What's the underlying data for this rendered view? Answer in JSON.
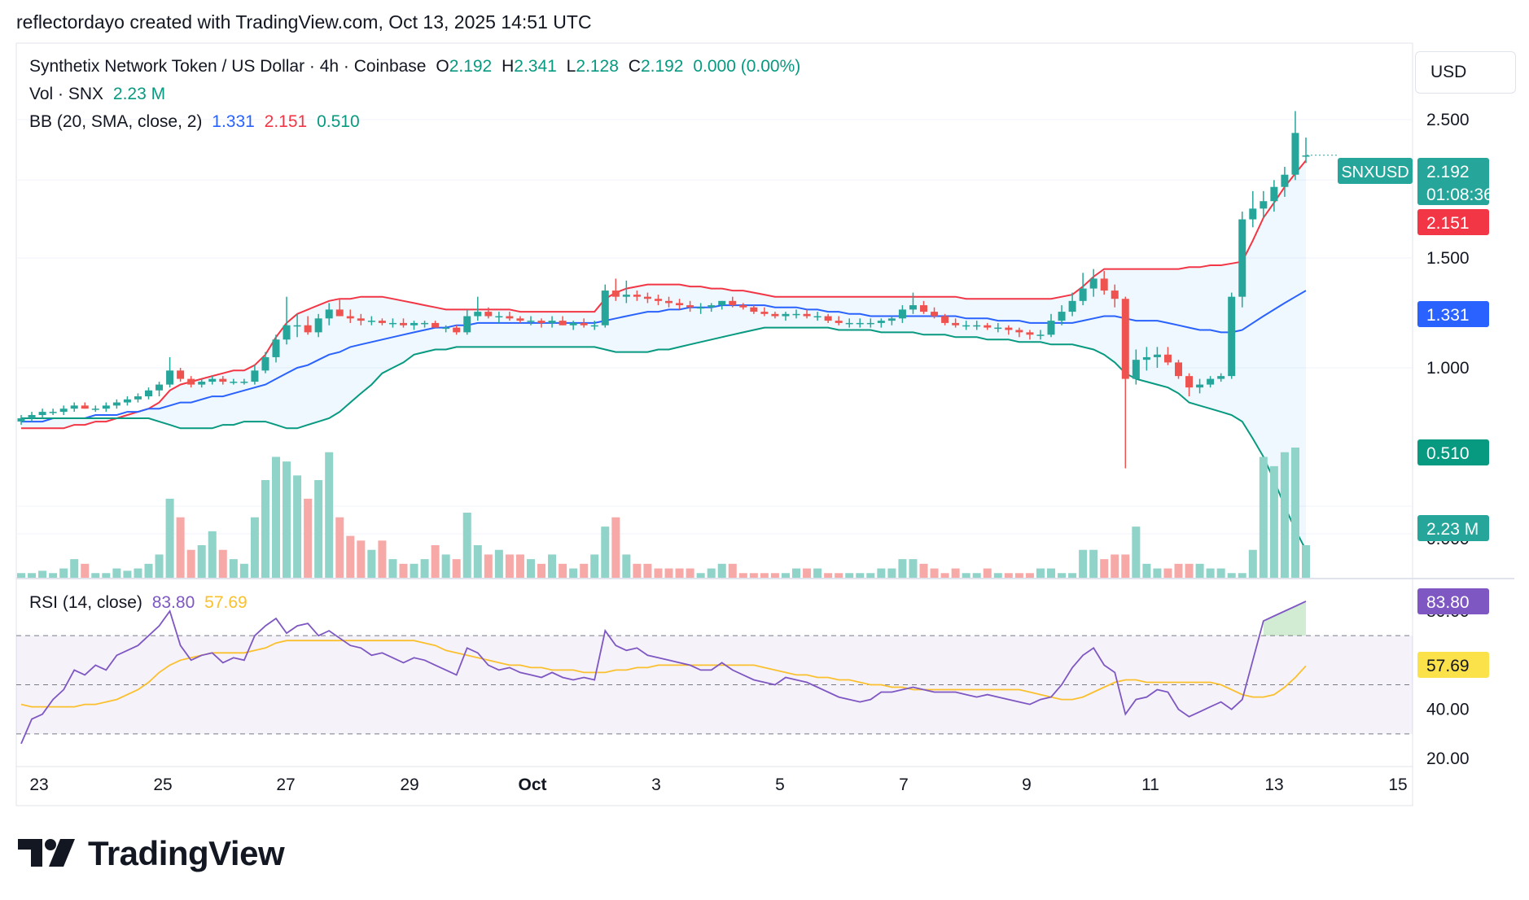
{
  "credit": "reflectordayo created with TradingView.com, Oct 13, 2025 14:51 UTC",
  "legend": {
    "main_title": "Synthetix Network Token / US Dollar · 4h · Coinbase",
    "o_label": "O",
    "o_val": "2.192",
    "h_label": "H",
    "h_val": "2.341",
    "l_label": "L",
    "l_val": "2.128",
    "c_label": "C",
    "c_val": "2.192",
    "change": "0.000 (0.00%)",
    "vol_label": "Vol · SNX",
    "vol_val": "2.23 M",
    "bb_label": "BB (20, SMA, close, 2)",
    "bb_mid": "1.331",
    "bb_upper": "2.151",
    "bb_lower": "0.510",
    "rsi_label": "RSI (14, close)",
    "rsi_val": "83.80",
    "rsi_ma": "57.69"
  },
  "currency": "USD",
  "logo_text": "TradingView",
  "colors": {
    "up": "#26a69a",
    "down": "#ef5350",
    "bb_upper": "#f23645",
    "bb_basis": "#2962ff",
    "bb_lower": "#089981",
    "rsi": "#7e57c2",
    "rsi_ma": "#fbc02d",
    "vol_up": "#8fd3c9",
    "vol_down": "#f7a9a7"
  },
  "chart_data": {
    "type": "candlestick",
    "symbol": "SNXUSD",
    "timeframe": "4h",
    "price_axis": {
      "ticks": [
        "2.500",
        "1.500",
        "1.000"
      ],
      "scale": "log",
      "markers": [
        {
          "label": "SNXUSD",
          "value": "2.192",
          "sub": "01:08:36",
          "color": "#26a69a"
        },
        {
          "label": "",
          "value": "2.151",
          "color": "#f23645"
        },
        {
          "label": "",
          "value": "1.331",
          "color": "#2962ff"
        },
        {
          "label": "",
          "value": "0.510",
          "color": "#089981"
        },
        {
          "label": "",
          "value": "2.23 M",
          "color": "#26a69a"
        }
      ],
      "hidden_tick": "0.000"
    },
    "rsi_axis": {
      "ticks": [
        "80.00",
        "40.00",
        "20.00"
      ],
      "markers": [
        {
          "value": "83.80",
          "color": "#7e57c2",
          "text_color": "#ffffff"
        },
        {
          "value": "57.69",
          "color": "#fbe14a",
          "text_color": "#131722"
        }
      ],
      "bands": [
        70,
        50,
        30
      ]
    },
    "x_ticks": [
      "23",
      "25",
      "27",
      "29",
      "Oct",
      "3",
      "5",
      "7",
      "9",
      "11",
      "13",
      "15"
    ],
    "ohlc": [
      [
        0.82,
        0.84,
        0.81,
        0.83
      ],
      [
        0.83,
        0.85,
        0.82,
        0.84
      ],
      [
        0.84,
        0.86,
        0.83,
        0.85
      ],
      [
        0.85,
        0.86,
        0.84,
        0.85
      ],
      [
        0.85,
        0.87,
        0.84,
        0.86
      ],
      [
        0.86,
        0.88,
        0.85,
        0.87
      ],
      [
        0.87,
        0.88,
        0.86,
        0.86
      ],
      [
        0.86,
        0.87,
        0.85,
        0.86
      ],
      [
        0.86,
        0.88,
        0.85,
        0.87
      ],
      [
        0.87,
        0.89,
        0.86,
        0.88
      ],
      [
        0.88,
        0.9,
        0.87,
        0.89
      ],
      [
        0.89,
        0.91,
        0.88,
        0.9
      ],
      [
        0.9,
        0.93,
        0.89,
        0.92
      ],
      [
        0.92,
        0.95,
        0.9,
        0.94
      ],
      [
        0.94,
        1.04,
        0.93,
        0.99
      ],
      [
        0.99,
        1.0,
        0.95,
        0.96
      ],
      [
        0.96,
        0.97,
        0.93,
        0.94
      ],
      [
        0.94,
        0.96,
        0.93,
        0.95
      ],
      [
        0.95,
        0.97,
        0.94,
        0.96
      ],
      [
        0.96,
        0.97,
        0.94,
        0.95
      ],
      [
        0.95,
        0.96,
        0.94,
        0.95
      ],
      [
        0.95,
        0.96,
        0.94,
        0.95
      ],
      [
        0.95,
        1.01,
        0.94,
        0.99
      ],
      [
        0.99,
        1.06,
        0.98,
        1.04
      ],
      [
        1.04,
        1.13,
        1.02,
        1.11
      ],
      [
        1.11,
        1.3,
        1.09,
        1.17
      ],
      [
        1.17,
        1.22,
        1.12,
        1.17
      ],
      [
        1.17,
        1.21,
        1.13,
        1.14
      ],
      [
        1.14,
        1.22,
        1.12,
        1.2
      ],
      [
        1.2,
        1.27,
        1.17,
        1.24
      ],
      [
        1.24,
        1.29,
        1.21,
        1.21
      ],
      [
        1.21,
        1.24,
        1.18,
        1.2
      ],
      [
        1.2,
        1.22,
        1.17,
        1.19
      ],
      [
        1.19,
        1.21,
        1.17,
        1.19
      ],
      [
        1.19,
        1.2,
        1.17,
        1.18
      ],
      [
        1.18,
        1.2,
        1.16,
        1.18
      ],
      [
        1.18,
        1.2,
        1.16,
        1.17
      ],
      [
        1.17,
        1.19,
        1.15,
        1.18
      ],
      [
        1.18,
        1.19,
        1.16,
        1.18
      ],
      [
        1.18,
        1.19,
        1.16,
        1.16
      ],
      [
        1.16,
        1.17,
        1.14,
        1.16
      ],
      [
        1.16,
        1.17,
        1.13,
        1.14
      ],
      [
        1.14,
        1.24,
        1.13,
        1.21
      ],
      [
        1.21,
        1.3,
        1.19,
        1.23
      ],
      [
        1.23,
        1.25,
        1.2,
        1.21
      ],
      [
        1.21,
        1.23,
        1.18,
        1.21
      ],
      [
        1.21,
        1.23,
        1.19,
        1.2
      ],
      [
        1.2,
        1.21,
        1.18,
        1.19
      ],
      [
        1.19,
        1.21,
        1.17,
        1.19
      ],
      [
        1.19,
        1.2,
        1.16,
        1.18
      ],
      [
        1.18,
        1.21,
        1.16,
        1.19
      ],
      [
        1.19,
        1.21,
        1.17,
        1.17
      ],
      [
        1.17,
        1.19,
        1.15,
        1.18
      ],
      [
        1.18,
        1.2,
        1.16,
        1.17
      ],
      [
        1.17,
        1.19,
        1.15,
        1.17
      ],
      [
        1.17,
        1.36,
        1.16,
        1.33
      ],
      [
        1.33,
        1.39,
        1.28,
        1.3
      ],
      [
        1.3,
        1.38,
        1.27,
        1.31
      ],
      [
        1.31,
        1.33,
        1.28,
        1.3
      ],
      [
        1.3,
        1.32,
        1.27,
        1.29
      ],
      [
        1.29,
        1.31,
        1.26,
        1.28
      ],
      [
        1.28,
        1.3,
        1.25,
        1.27
      ],
      [
        1.27,
        1.29,
        1.24,
        1.26
      ],
      [
        1.26,
        1.28,
        1.23,
        1.25
      ],
      [
        1.25,
        1.27,
        1.22,
        1.25
      ],
      [
        1.25,
        1.27,
        1.23,
        1.26
      ],
      [
        1.26,
        1.28,
        1.24,
        1.28
      ],
      [
        1.28,
        1.3,
        1.25,
        1.26
      ],
      [
        1.26,
        1.27,
        1.24,
        1.25
      ],
      [
        1.25,
        1.26,
        1.22,
        1.23
      ],
      [
        1.23,
        1.25,
        1.21,
        1.22
      ],
      [
        1.22,
        1.23,
        1.2,
        1.21
      ],
      [
        1.21,
        1.23,
        1.19,
        1.22
      ],
      [
        1.22,
        1.24,
        1.2,
        1.22
      ],
      [
        1.22,
        1.24,
        1.2,
        1.21
      ],
      [
        1.21,
        1.23,
        1.19,
        1.21
      ],
      [
        1.21,
        1.22,
        1.18,
        1.19
      ],
      [
        1.19,
        1.21,
        1.17,
        1.18
      ],
      [
        1.18,
        1.2,
        1.16,
        1.18
      ],
      [
        1.18,
        1.2,
        1.16,
        1.18
      ],
      [
        1.18,
        1.2,
        1.16,
        1.18
      ],
      [
        1.18,
        1.2,
        1.16,
        1.19
      ],
      [
        1.19,
        1.21,
        1.17,
        1.2
      ],
      [
        1.2,
        1.26,
        1.18,
        1.24
      ],
      [
        1.24,
        1.32,
        1.22,
        1.26
      ],
      [
        1.26,
        1.28,
        1.22,
        1.23
      ],
      [
        1.23,
        1.25,
        1.2,
        1.21
      ],
      [
        1.21,
        1.22,
        1.17,
        1.18
      ],
      [
        1.18,
        1.2,
        1.16,
        1.17
      ],
      [
        1.17,
        1.19,
        1.15,
        1.17
      ],
      [
        1.17,
        1.19,
        1.15,
        1.17
      ],
      [
        1.17,
        1.18,
        1.15,
        1.16
      ],
      [
        1.16,
        1.18,
        1.14,
        1.16
      ],
      [
        1.16,
        1.17,
        1.13,
        1.15
      ],
      [
        1.15,
        1.16,
        1.12,
        1.14
      ],
      [
        1.14,
        1.15,
        1.11,
        1.13
      ],
      [
        1.13,
        1.15,
        1.11,
        1.13
      ],
      [
        1.13,
        1.22,
        1.12,
        1.19
      ],
      [
        1.19,
        1.26,
        1.17,
        1.23
      ],
      [
        1.23,
        1.32,
        1.21,
        1.28
      ],
      [
        1.28,
        1.42,
        1.26,
        1.34
      ],
      [
        1.34,
        1.44,
        1.3,
        1.39
      ],
      [
        1.39,
        1.43,
        1.31,
        1.33
      ],
      [
        1.33,
        1.36,
        1.25,
        1.29
      ],
      [
        1.29,
        1.3,
        0.69,
        0.96
      ],
      [
        0.96,
        1.07,
        0.94,
        1.03
      ],
      [
        1.03,
        1.08,
        0.99,
        1.04
      ],
      [
        1.04,
        1.08,
        1.0,
        1.05
      ],
      [
        1.05,
        1.08,
        1.01,
        1.02
      ],
      [
        1.02,
        1.03,
        0.96,
        0.97
      ],
      [
        0.97,
        0.98,
        0.9,
        0.93
      ],
      [
        0.93,
        0.96,
        0.91,
        0.94
      ],
      [
        0.94,
        0.97,
        0.93,
        0.96
      ],
      [
        0.96,
        0.98,
        0.95,
        0.97
      ],
      [
        0.97,
        1.32,
        0.96,
        1.3
      ],
      [
        1.3,
        1.78,
        1.25,
        1.73
      ],
      [
        1.73,
        1.92,
        1.68,
        1.8
      ],
      [
        1.8,
        1.92,
        1.74,
        1.85
      ],
      [
        1.85,
        2.0,
        1.78,
        1.95
      ],
      [
        1.95,
        2.1,
        1.88,
        2.04
      ],
      [
        2.04,
        2.58,
        2.0,
        2.38
      ],
      [
        2.19,
        2.34,
        2.13,
        2.19
      ]
    ],
    "bb_upper": [
      0.8,
      0.8,
      0.8,
      0.8,
      0.8,
      0.81,
      0.81,
      0.82,
      0.82,
      0.83,
      0.84,
      0.85,
      0.86,
      0.88,
      0.92,
      0.94,
      0.95,
      0.96,
      0.97,
      0.98,
      0.99,
      0.99,
      1.01,
      1.05,
      1.12,
      1.18,
      1.22,
      1.24,
      1.26,
      1.28,
      1.29,
      1.29,
      1.3,
      1.3,
      1.3,
      1.29,
      1.28,
      1.27,
      1.26,
      1.25,
      1.24,
      1.24,
      1.24,
      1.24,
      1.24,
      1.24,
      1.24,
      1.23,
      1.23,
      1.23,
      1.23,
      1.23,
      1.23,
      1.23,
      1.23,
      1.29,
      1.32,
      1.34,
      1.35,
      1.36,
      1.36,
      1.36,
      1.36,
      1.35,
      1.35,
      1.34,
      1.34,
      1.33,
      1.33,
      1.32,
      1.31,
      1.3,
      1.3,
      1.3,
      1.3,
      1.3,
      1.3,
      1.3,
      1.3,
      1.3,
      1.3,
      1.3,
      1.3,
      1.3,
      1.3,
      1.3,
      1.3,
      1.3,
      1.3,
      1.29,
      1.29,
      1.29,
      1.29,
      1.29,
      1.29,
      1.29,
      1.29,
      1.29,
      1.3,
      1.31,
      1.35,
      1.4,
      1.44,
      1.44,
      1.44,
      1.44,
      1.44,
      1.44,
      1.44,
      1.44,
      1.45,
      1.45,
      1.46,
      1.46,
      1.47,
      1.48,
      1.6,
      1.74,
      1.84,
      1.95,
      2.05,
      2.15
    ],
    "bb_basis": [
      0.82,
      0.82,
      0.82,
      0.83,
      0.83,
      0.83,
      0.83,
      0.84,
      0.84,
      0.84,
      0.85,
      0.85,
      0.86,
      0.86,
      0.87,
      0.88,
      0.88,
      0.89,
      0.9,
      0.9,
      0.91,
      0.92,
      0.93,
      0.94,
      0.96,
      0.98,
      1.0,
      1.01,
      1.03,
      1.05,
      1.06,
      1.08,
      1.09,
      1.1,
      1.11,
      1.12,
      1.13,
      1.14,
      1.15,
      1.16,
      1.16,
      1.17,
      1.17,
      1.18,
      1.18,
      1.18,
      1.18,
      1.18,
      1.18,
      1.18,
      1.18,
      1.18,
      1.18,
      1.18,
      1.18,
      1.19,
      1.2,
      1.21,
      1.22,
      1.23,
      1.23,
      1.24,
      1.24,
      1.25,
      1.25,
      1.25,
      1.26,
      1.26,
      1.26,
      1.26,
      1.26,
      1.25,
      1.25,
      1.25,
      1.24,
      1.24,
      1.23,
      1.23,
      1.22,
      1.22,
      1.21,
      1.21,
      1.21,
      1.21,
      1.21,
      1.21,
      1.21,
      1.21,
      1.21,
      1.2,
      1.2,
      1.2,
      1.19,
      1.19,
      1.19,
      1.18,
      1.18,
      1.18,
      1.18,
      1.18,
      1.19,
      1.2,
      1.21,
      1.21,
      1.2,
      1.19,
      1.19,
      1.19,
      1.18,
      1.17,
      1.16,
      1.15,
      1.15,
      1.14,
      1.14,
      1.15,
      1.18,
      1.21,
      1.24,
      1.27,
      1.3,
      1.33
    ],
    "bb_lower": [
      0.83,
      0.83,
      0.83,
      0.83,
      0.83,
      0.83,
      0.83,
      0.83,
      0.83,
      0.83,
      0.83,
      0.83,
      0.83,
      0.82,
      0.81,
      0.8,
      0.8,
      0.8,
      0.8,
      0.81,
      0.81,
      0.82,
      0.82,
      0.82,
      0.81,
      0.8,
      0.8,
      0.81,
      0.82,
      0.83,
      0.85,
      0.88,
      0.91,
      0.94,
      0.98,
      1.0,
      1.02,
      1.05,
      1.06,
      1.07,
      1.07,
      1.08,
      1.08,
      1.08,
      1.08,
      1.08,
      1.08,
      1.08,
      1.08,
      1.08,
      1.08,
      1.08,
      1.08,
      1.08,
      1.08,
      1.07,
      1.06,
      1.06,
      1.06,
      1.06,
      1.07,
      1.07,
      1.08,
      1.09,
      1.1,
      1.11,
      1.12,
      1.13,
      1.14,
      1.15,
      1.16,
      1.16,
      1.16,
      1.16,
      1.16,
      1.16,
      1.16,
      1.15,
      1.15,
      1.15,
      1.15,
      1.14,
      1.14,
      1.14,
      1.14,
      1.13,
      1.13,
      1.13,
      1.12,
      1.12,
      1.12,
      1.11,
      1.11,
      1.11,
      1.1,
      1.1,
      1.1,
      1.09,
      1.09,
      1.09,
      1.08,
      1.07,
      1.05,
      1.02,
      0.98,
      0.96,
      0.95,
      0.94,
      0.93,
      0.91,
      0.88,
      0.87,
      0.86,
      0.85,
      0.84,
      0.82,
      0.77,
      0.72,
      0.66,
      0.6,
      0.55,
      0.51
    ],
    "volume": [
      1,
      1,
      1.5,
      1,
      2,
      4,
      3,
      1,
      1,
      2,
      1.5,
      2,
      3,
      5,
      17,
      13,
      6,
      7,
      10,
      6,
      4,
      3,
      13,
      21,
      26,
      25,
      22,
      17,
      21,
      27,
      13,
      9,
      8,
      6,
      8,
      4,
      3,
      3,
      4,
      7,
      5,
      4,
      14,
      7,
      5,
      6,
      5,
      5,
      4,
      3,
      5,
      3,
      2,
      3,
      5,
      11,
      13,
      5,
      3,
      3,
      2,
      2,
      2,
      2,
      1,
      2,
      3,
      3,
      1,
      1,
      1,
      1,
      1,
      2,
      2,
      2,
      1,
      1,
      1,
      1,
      1,
      2,
      2,
      4,
      4,
      3,
      2,
      1,
      2,
      1,
      1,
      2,
      1,
      1,
      1,
      1,
      2,
      2,
      1,
      1,
      6,
      6,
      4,
      5,
      5,
      11,
      3,
      2,
      2,
      3,
      3,
      3,
      2,
      2,
      1,
      1,
      6,
      26,
      24,
      27,
      28,
      7
    ],
    "rsi": [
      26,
      36,
      38,
      44,
      48,
      56,
      54,
      58,
      56,
      62,
      64,
      66,
      70,
      74,
      80,
      66,
      60,
      62,
      63,
      59,
      61,
      60,
      70,
      74,
      77,
      71,
      74,
      75,
      70,
      72,
      69,
      66,
      65,
      62,
      63,
      61,
      59,
      61,
      60,
      58,
      56,
      54,
      65,
      63,
      58,
      56,
      57,
      55,
      54,
      53,
      55,
      53,
      52,
      53,
      52,
      72,
      66,
      64,
      65,
      62,
      61,
      60,
      59,
      58,
      56,
      56,
      59,
      56,
      54,
      52,
      51,
      50,
      53,
      52,
      51,
      49,
      47,
      45,
      44,
      43,
      44,
      47,
      47,
      48,
      49,
      48,
      47,
      47,
      47,
      46,
      45,
      46,
      45,
      44,
      43,
      42,
      44,
      45,
      50,
      57,
      62,
      65,
      58,
      55,
      38,
      44,
      45,
      48,
      47,
      40,
      37,
      39,
      41,
      43,
      40,
      44,
      60,
      76,
      78,
      80,
      82,
      84
    ],
    "rsi_ma": [
      42,
      41,
      41,
      41,
      41,
      41,
      42,
      42,
      43,
      44,
      46,
      48,
      51,
      55,
      58,
      60,
      61,
      62,
      63,
      63,
      63,
      63,
      64,
      65,
      67,
      68,
      68,
      68,
      68,
      68,
      68,
      68,
      68,
      68,
      68,
      68,
      68,
      68,
      67,
      66,
      64,
      63,
      62,
      61,
      60,
      59,
      58,
      58,
      57,
      57,
      56,
      56,
      56,
      55,
      55,
      55,
      56,
      56,
      57,
      57,
      58,
      58,
      58,
      58,
      58,
      58,
      58,
      58,
      58,
      58,
      57,
      56,
      55,
      54,
      54,
      53,
      53,
      52,
      52,
      51,
      50,
      50,
      49,
      49,
      48,
      48,
      48,
      48,
      48,
      48,
      48,
      48,
      48,
      48,
      48,
      47,
      46,
      45,
      44,
      44,
      45,
      47,
      49,
      51,
      52,
      52,
      51,
      51,
      51,
      51,
      51,
      51,
      51,
      50,
      48,
      46,
      45,
      45,
      46,
      49,
      53,
      57.69
    ]
  }
}
